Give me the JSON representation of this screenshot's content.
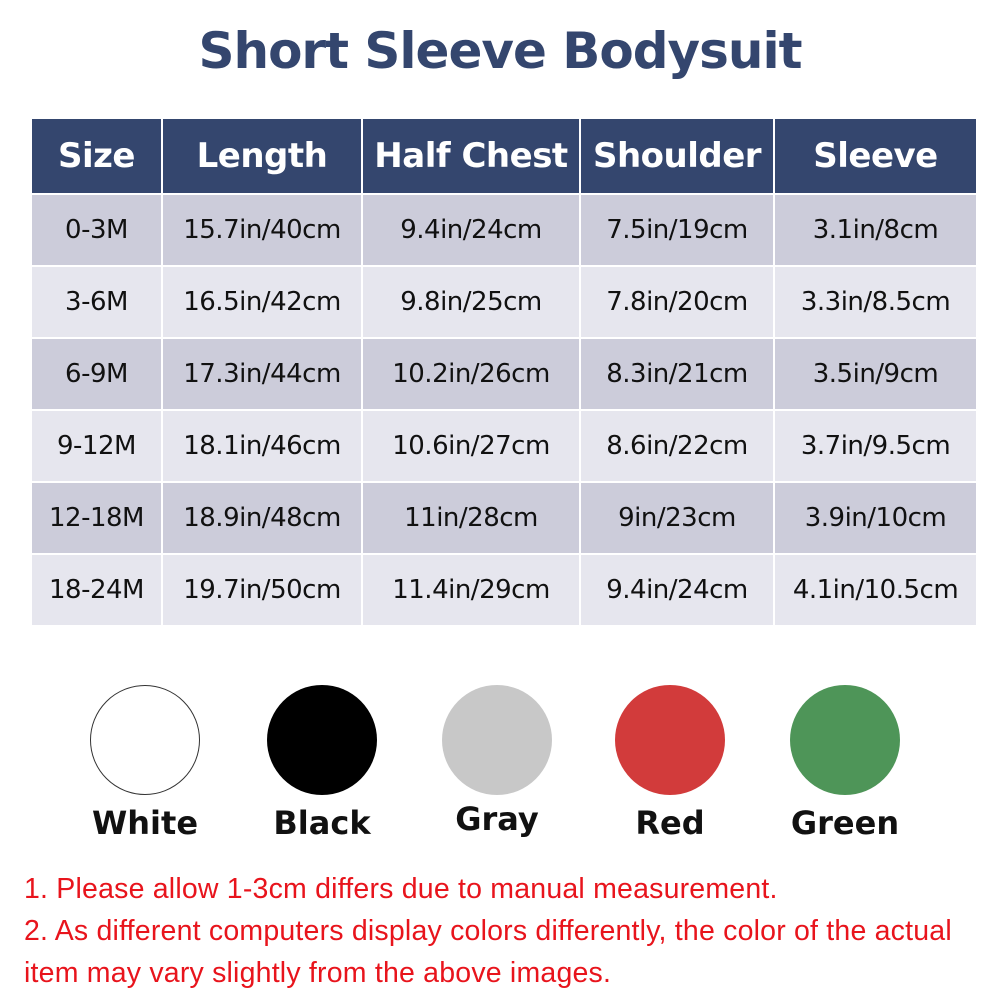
{
  "title": "Short Sleeve Bodysuit",
  "table": {
    "headers": [
      "Size",
      "Length",
      "Half Chest",
      "Shoulder",
      "Sleeve"
    ],
    "rows": [
      [
        "0-3M",
        "15.7in/40cm",
        "9.4in/24cm",
        "7.5in/19cm",
        "3.1in/8cm"
      ],
      [
        "3-6M",
        "16.5in/42cm",
        "9.8in/25cm",
        "7.8in/20cm",
        "3.3in/8.5cm"
      ],
      [
        "6-9M",
        "17.3in/44cm",
        "10.2in/26cm",
        "8.3in/21cm",
        "3.5in/9cm"
      ],
      [
        "9-12M",
        "18.1in/46cm",
        "10.6in/27cm",
        "8.6in/22cm",
        "3.7in/9.5cm"
      ],
      [
        "12-18M",
        "18.9in/48cm",
        "11in/28cm",
        "9in/23cm",
        "3.9in/10cm"
      ],
      [
        "18-24M",
        "19.7in/50cm",
        "11.4in/29cm",
        "9.4in/24cm",
        "4.1in/10.5cm"
      ]
    ]
  },
  "colors": [
    {
      "label": "White",
      "hex": "#ffffff"
    },
    {
      "label": "Black",
      "hex": "#000000"
    },
    {
      "label": "Gray",
      "hex": "#c8c8c8"
    },
    {
      "label": "Red",
      "hex": "#d23b3b"
    },
    {
      "label": "Green",
      "hex": "#4e9558"
    }
  ],
  "notes": [
    "1. Please allow 1-3cm differs due to manual measurement.",
    "2. As different computers display colors differently, the color of the actual item may vary slightly from the above images."
  ],
  "accent": "#34466e"
}
